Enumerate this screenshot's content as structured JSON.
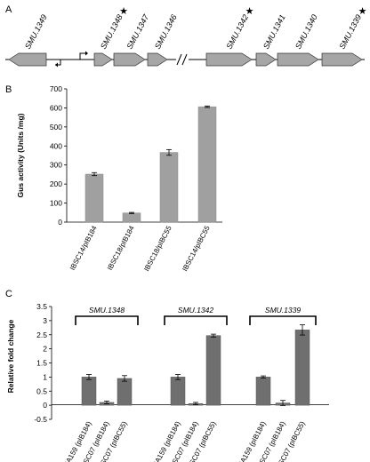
{
  "panels": {
    "a": "A",
    "b": "B",
    "c": "C"
  },
  "gene_map": {
    "genes": [
      {
        "label": "SMU.1349",
        "direction": "left",
        "star": false
      },
      {
        "label": "SMU.1348",
        "direction": "right",
        "star": true
      },
      {
        "label": "SMU.1347",
        "direction": "right",
        "star": false
      },
      {
        "label": "SMU.1346",
        "direction": "right",
        "star": false
      },
      {
        "label": "SMU.1342",
        "direction": "right",
        "star": true
      },
      {
        "label": "SMU.1341",
        "direction": "right",
        "star": false
      },
      {
        "label": "SMU.1340",
        "direction": "right",
        "star": false
      },
      {
        "label": "SMU.1339",
        "direction": "right",
        "star": true
      }
    ],
    "star_symbol": "★",
    "colors": {
      "arrow_fill": "#a6a6a6",
      "arrow_stroke": "#333333",
      "line": "#000000"
    }
  },
  "chart_data": [
    {
      "type": "bar",
      "panel": "B",
      "categories": [
        "IBSC14/pIB184",
        "IBSC18/pIB184",
        "IBSC18/pIBC55",
        "IBSC14/pIBC55"
      ],
      "values": [
        252,
        48,
        366,
        606
      ],
      "errors": [
        8,
        3,
        15,
        4
      ],
      "ylabel": "Gus activity (Units /mg)",
      "xlabel": "",
      "ylim": [
        0,
        700
      ],
      "yticks": [
        "0",
        "100",
        "200",
        "300",
        "400",
        "500",
        "600",
        "700"
      ],
      "grid": false,
      "bar_color": "#a0a0a0"
    },
    {
      "type": "bar",
      "panel": "C",
      "groups": [
        {
          "name": "SMU.1348",
          "categories": [
            "UA159 (pIB184)",
            "IBSC07 (pIB184)",
            "IBSC07 (pIBC55)"
          ],
          "values": [
            1.0,
            0.1,
            0.95
          ],
          "errors": [
            0.09,
            0.05,
            0.1
          ]
        },
        {
          "name": "SMU.1342",
          "categories": [
            "UA159 (pIB184)",
            "IBSC07 (pIB184)",
            "IBSC07 (pIBC55)"
          ],
          "values": [
            1.0,
            0.06,
            2.47
          ],
          "errors": [
            0.09,
            0.04,
            0.05
          ]
        },
        {
          "name": "SMU.1339",
          "categories": [
            "UA159 (pIB184)",
            "IBSC07 (pIB184)",
            "IBSC07 (pIBC55)"
          ],
          "values": [
            1.0,
            0.08,
            2.67
          ],
          "errors": [
            0.04,
            0.09,
            0.18
          ]
        }
      ],
      "ylabel": "Relative fold change",
      "xlabel": "",
      "ylim": [
        -0.5,
        3.5
      ],
      "yticks": [
        "-0.5",
        "0",
        "0.5",
        "1",
        "1.5",
        "2",
        "2.5",
        "3",
        "3.5"
      ],
      "grid": false,
      "bar_color": "#6f6f6f"
    }
  ]
}
